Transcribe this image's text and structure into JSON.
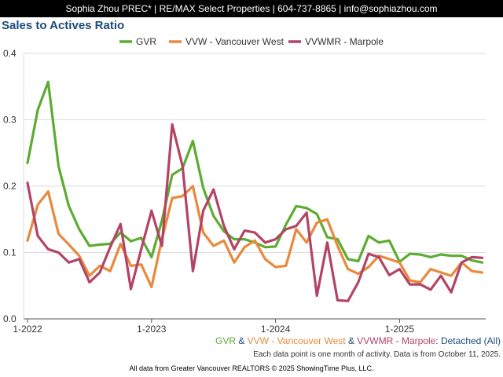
{
  "header": {
    "text": "Sophia Zhou PREC* | RE/MAX Select Properties | 604-737-8865 | info@sophiazhou.com"
  },
  "chart_data": {
    "type": "line",
    "title": "Sales to Actives Ratio",
    "xlabel": "",
    "ylabel": "",
    "ylim": [
      0,
      0.4
    ],
    "y_ticks": [
      "0.0",
      "0.1",
      "0.2",
      "0.3",
      "0.4"
    ],
    "x_ticks": [
      "1-2022",
      "1-2023",
      "1-2024",
      "1-2025"
    ],
    "months": [
      "2022-01",
      "2022-02",
      "2022-03",
      "2022-04",
      "2022-05",
      "2022-06",
      "2022-07",
      "2022-08",
      "2022-09",
      "2022-10",
      "2022-11",
      "2022-12",
      "2023-01",
      "2023-02",
      "2023-03",
      "2023-04",
      "2023-05",
      "2023-06",
      "2023-07",
      "2023-08",
      "2023-09",
      "2023-10",
      "2023-11",
      "2023-12",
      "2024-01",
      "2024-02",
      "2024-03",
      "2024-04",
      "2024-05",
      "2024-06",
      "2024-07",
      "2024-08",
      "2024-09",
      "2024-10",
      "2024-11",
      "2024-12",
      "2025-01",
      "2025-02",
      "2025-03",
      "2025-04",
      "2025-05",
      "2025-06",
      "2025-07",
      "2025-08",
      "2025-09"
    ],
    "legend_position": "top",
    "grid": true,
    "series": [
      {
        "name": "GVR",
        "color": "#5cac32",
        "values": [
          0.235,
          0.315,
          0.357,
          0.23,
          0.17,
          0.135,
          0.11,
          0.112,
          0.113,
          0.13,
          0.117,
          0.122,
          0.093,
          0.148,
          0.217,
          0.227,
          0.268,
          0.197,
          0.155,
          0.132,
          0.12,
          0.12,
          0.115,
          0.108,
          0.109,
          0.142,
          0.17,
          0.167,
          0.158,
          0.123,
          0.12,
          0.09,
          0.087,
          0.125,
          0.115,
          0.118,
          0.086,
          0.098,
          0.097,
          0.093,
          0.097,
          0.095,
          0.095,
          0.088,
          0.085
        ]
      },
      {
        "name": "VVW - Vancouver West",
        "color": "#e8893c",
        "values": [
          0.118,
          0.172,
          0.192,
          0.128,
          0.112,
          0.095,
          0.065,
          0.08,
          0.072,
          0.113,
          0.08,
          0.082,
          0.048,
          0.12,
          0.182,
          0.185,
          0.2,
          0.13,
          0.11,
          0.118,
          0.085,
          0.108,
          0.118,
          0.09,
          0.078,
          0.08,
          0.135,
          0.115,
          0.145,
          0.15,
          0.11,
          0.075,
          0.068,
          0.078,
          0.095,
          0.09,
          0.085,
          0.058,
          0.055,
          0.075,
          0.07,
          0.065,
          0.085,
          0.072,
          0.07
        ]
      },
      {
        "name": "VVWMR - Marpole",
        "color": "#b34466",
        "values": [
          0.205,
          0.125,
          0.105,
          0.1,
          0.085,
          0.09,
          0.055,
          0.07,
          0.108,
          0.143,
          0.045,
          0.105,
          0.163,
          0.11,
          0.293,
          0.23,
          0.072,
          0.163,
          0.195,
          0.14,
          0.105,
          0.133,
          0.13,
          0.115,
          0.12,
          0.135,
          0.14,
          0.16,
          0.035,
          0.115,
          0.028,
          0.027,
          0.055,
          0.098,
          0.093,
          0.066,
          0.075,
          0.052,
          0.052,
          0.044,
          0.065,
          0.04,
          0.085,
          0.093,
          0.092
        ]
      }
    ]
  },
  "footer": {
    "legend_parts": [
      {
        "text": "GVR",
        "color": "#5cac32"
      },
      {
        "text": " & ",
        "color": "#1c4b7a"
      },
      {
        "text": "VVW - Vancouver West",
        "color": "#e8893c"
      },
      {
        "text": " & ",
        "color": "#1c4b7a"
      },
      {
        "text": "VVWMR - Marpole",
        "color": "#b34466"
      },
      {
        "text": ": Detached (All)",
        "color": "#1c4b7a"
      }
    ],
    "note": "Each data point is one month of activity. Data is from October 11, 2025.",
    "credit": "All data from Greater Vancouver REALTORS © 2025 ShowingTime Plus, LLC."
  }
}
